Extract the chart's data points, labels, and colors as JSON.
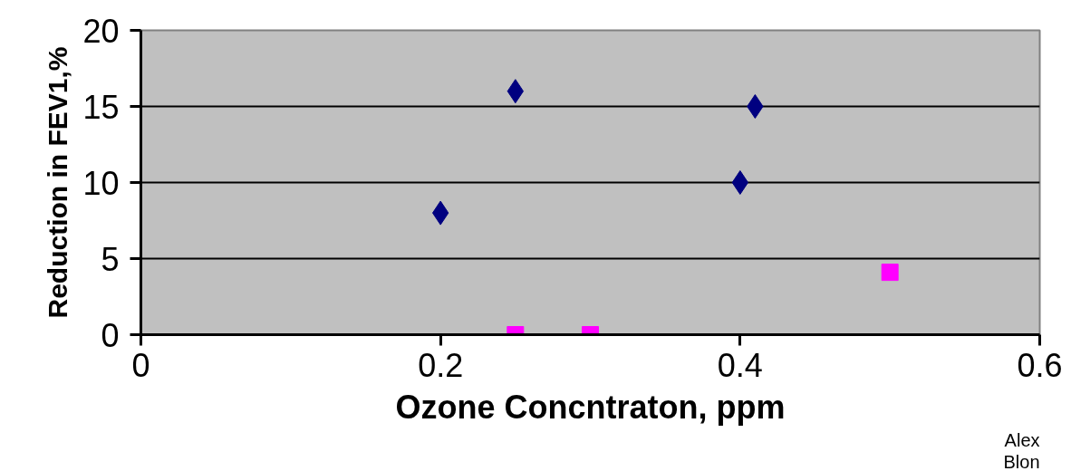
{
  "chart_data": {
    "type": "scatter",
    "xlabel": "Ozone Concntraton, ppm",
    "ylabel": "Reduction in FEV1,%",
    "series": [
      {
        "color": "#000080",
        "marker": "diamond",
        "x": [
          0.2,
          0.25,
          0.4,
          0.41
        ],
        "values": [
          8,
          16,
          10,
          15
        ]
      },
      {
        "color": "#ff00ff",
        "marker": "square",
        "x": [
          0.25,
          0.3,
          0.5
        ],
        "values": [
          0,
          0,
          4.1
        ]
      }
    ],
    "xlim": [
      0,
      0.6
    ],
    "xticks": [
      0,
      0.2,
      0.4,
      0.6
    ],
    "ylim": [
      0,
      20
    ],
    "yticks": [
      0,
      5,
      10,
      15,
      20
    ],
    "grid": "y",
    "annotations": [
      "Alex",
      "Blon"
    ]
  }
}
